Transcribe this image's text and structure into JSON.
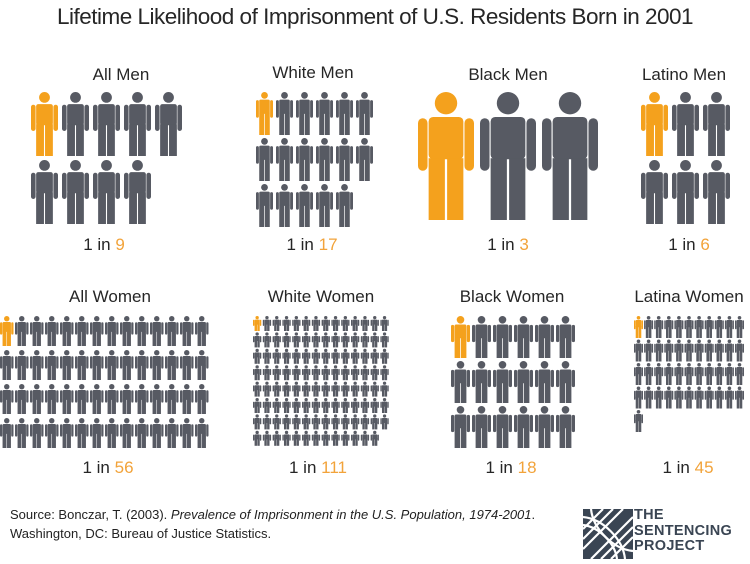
{
  "title": "Lifetime Likelihood of Imprisonment of U.S. Residents Born in 2001",
  "colors": {
    "highlight": "#f4a11d",
    "figure": "#575a63",
    "text": "#262626"
  },
  "chart_data": {
    "type": "pictogram",
    "title": "Lifetime Likelihood of Imprisonment of U.S. Residents Born in 2001",
    "unit_prefix": "1 in",
    "groups": [
      {
        "label": "All Men",
        "ratio": 9
      },
      {
        "label": "White Men",
        "ratio": 17
      },
      {
        "label": "Black Men",
        "ratio": 3
      },
      {
        "label": "Latino Men",
        "ratio": 6
      },
      {
        "label": "All Women",
        "ratio": 56
      },
      {
        "label": "White Women",
        "ratio": 111
      },
      {
        "label": "Black Women",
        "ratio": 18
      },
      {
        "label": "Latina Women",
        "ratio": 45
      }
    ]
  },
  "footer": {
    "source_prefix": "Source: Bonczar, T. (2003). ",
    "source_title": "Prevalence of Imprisonment in the U.S. Population, 1974-2001",
    "source_suffix": ". Washington, DC: Bureau of Justice Statistics."
  },
  "logo": {
    "line1": "THE",
    "line2": "SENTENCING",
    "line3": "PROJECT"
  }
}
